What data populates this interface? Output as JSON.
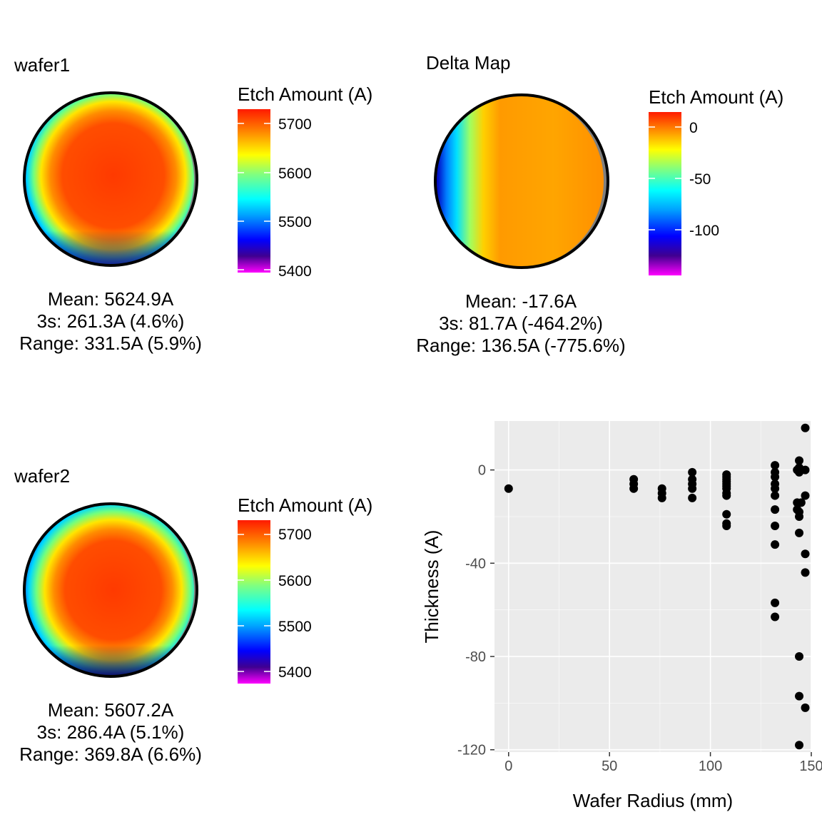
{
  "colors": {
    "panel_bg": "#EBEBEB",
    "grid_major": "#FFFFFF",
    "point": "#000000",
    "ring": "#000000",
    "colorscale": [
      "#FF00FF",
      "#0000FF",
      "#00FFFF",
      "#FFFF00",
      "#FF0000"
    ]
  },
  "wafer1": {
    "title": "wafer1",
    "legend_title": "Etch Amount (A)",
    "legend_ticks": [
      "5700",
      "5600",
      "5500",
      "5400"
    ],
    "stats": {
      "mean": "Mean: 5624.9A",
      "three_s": "3s: 261.3A (4.6%)",
      "range": "Range: 331.5A (5.9%)"
    }
  },
  "delta": {
    "title": "Delta Map",
    "legend_title": "Etch Amount (A)",
    "legend_ticks": [
      "0",
      "-50",
      "-100"
    ],
    "stats": {
      "mean": "Mean: -17.6A",
      "three_s": "3s: 81.7A (-464.2%)",
      "range": "Range: 136.5A (-775.6%)"
    }
  },
  "wafer2": {
    "title": "wafer2",
    "legend_title": "Etch Amount (A)",
    "legend_ticks": [
      "5700",
      "5600",
      "5500",
      "5400"
    ],
    "stats": {
      "mean": "Mean: 5607.2A",
      "three_s": "3s: 286.4A (5.1%)",
      "range": "Range: 369.8A (6.6%)"
    }
  },
  "chart_data": {
    "type": "scatter",
    "title": "",
    "xlabel": "Wafer Radius (mm)",
    "ylabel": "Thickness (A)",
    "xlim": [
      -7,
      150
    ],
    "ylim": [
      -121,
      21
    ],
    "xticks": [
      0,
      50,
      100,
      150
    ],
    "yticks": [
      0,
      -40,
      -80,
      -120
    ],
    "grid": true,
    "legend": "none",
    "points": [
      [
        0,
        -8
      ],
      [
        62,
        -4
      ],
      [
        62,
        -6
      ],
      [
        62,
        -8
      ],
      [
        76,
        -8
      ],
      [
        76,
        -10
      ],
      [
        76,
        -12
      ],
      [
        91,
        -1
      ],
      [
        91,
        -4
      ],
      [
        91,
        -6
      ],
      [
        91,
        -8
      ],
      [
        91,
        -12
      ],
      [
        108,
        -2
      ],
      [
        108,
        -3
      ],
      [
        108,
        -4
      ],
      [
        108,
        -5
      ],
      [
        108,
        -6
      ],
      [
        108,
        -7
      ],
      [
        108,
        -8
      ],
      [
        108,
        -10
      ],
      [
        108,
        -11
      ],
      [
        108,
        -19
      ],
      [
        108,
        -23
      ],
      [
        108,
        -24
      ],
      [
        132,
        2
      ],
      [
        132,
        -1
      ],
      [
        132,
        -3
      ],
      [
        132,
        -6
      ],
      [
        132,
        -8
      ],
      [
        132,
        -11
      ],
      [
        132,
        -17
      ],
      [
        132,
        -24
      ],
      [
        132,
        -32
      ],
      [
        132,
        -57
      ],
      [
        132,
        -63
      ],
      [
        143,
        0
      ],
      [
        143,
        -14
      ],
      [
        143,
        -17
      ],
      [
        144,
        4
      ],
      [
        144,
        1
      ],
      [
        144,
        -1
      ],
      [
        144,
        -18
      ],
      [
        144,
        -20
      ],
      [
        144,
        -27
      ],
      [
        144,
        -80
      ],
      [
        144,
        -97
      ],
      [
        144,
        -118
      ],
      [
        145,
        0
      ],
      [
        145,
        -14
      ],
      [
        147,
        18
      ],
      [
        147,
        0
      ],
      [
        147,
        -11
      ],
      [
        147,
        -36
      ],
      [
        147,
        -44
      ],
      [
        147,
        -102
      ]
    ]
  }
}
